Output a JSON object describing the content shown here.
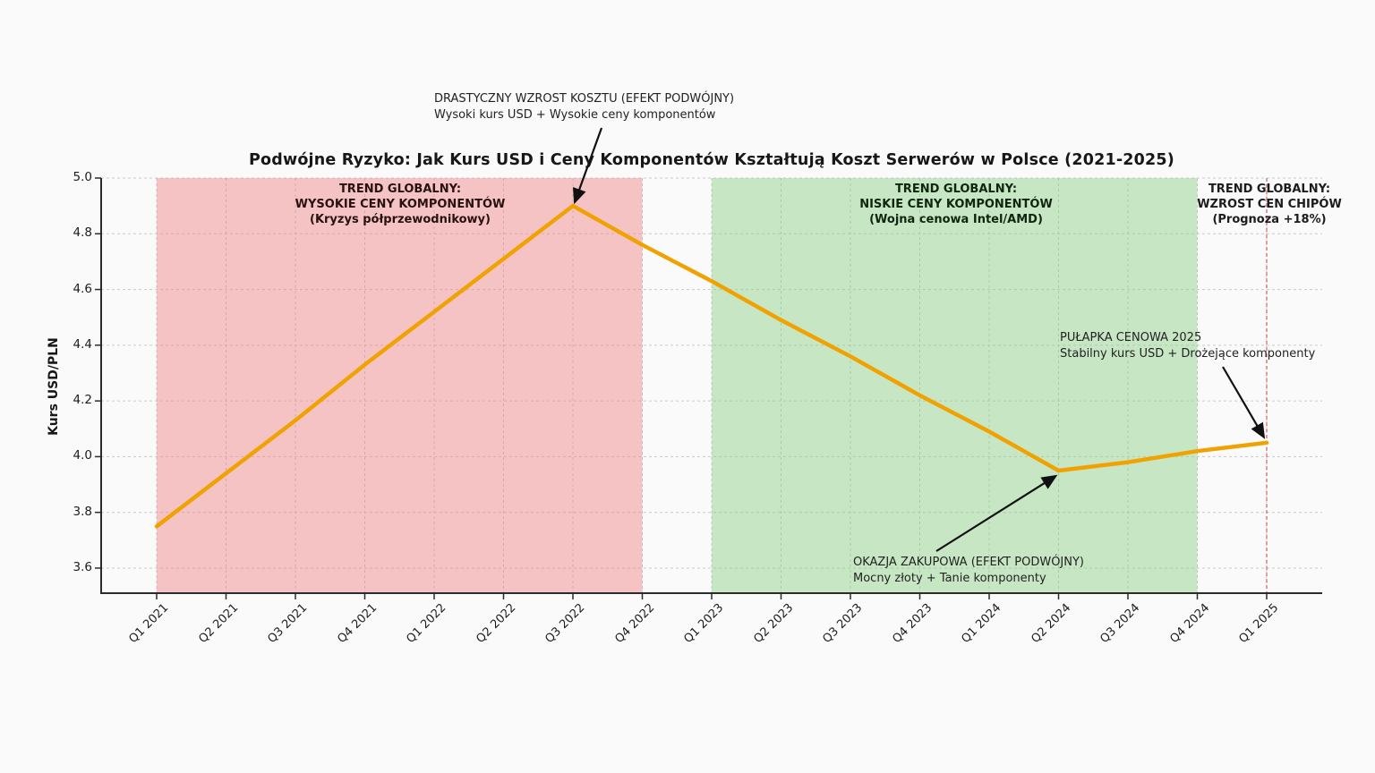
{
  "chart_data": {
    "type": "line",
    "title": "Podwójne Ryzyko: Jak Kurs USD i Ceny Komponentów Kształtują Koszt Serwerów w Polsce (2021-2025)",
    "xlabel": "",
    "ylabel": "Kurs USD/PLN",
    "x_labels": [
      "Q1 2021",
      "Q2 2021",
      "Q3 2021",
      "Q4 2021",
      "Q1 2022",
      "Q2 2022",
      "Q3 2022",
      "Q4 2022",
      "Q1 2023",
      "Q2 2023",
      "Q3 2023",
      "Q4 2023",
      "Q1 2024",
      "Q2 2024",
      "Q3 2024",
      "Q4 2024",
      "Q1 2025"
    ],
    "series": [
      {
        "name": "Kurs USD/PLN",
        "color": "#f0a202",
        "values": [
          3.75,
          3.94,
          4.13,
          4.33,
          4.52,
          4.71,
          4.9,
          4.76,
          4.63,
          4.49,
          4.36,
          4.22,
          4.09,
          3.95,
          3.98,
          4.02,
          4.05
        ]
      }
    ],
    "key_points": [
      {
        "x": "Q1 2021",
        "value": 3.75
      },
      {
        "x": "Q3 2022",
        "value": 4.9,
        "note": "peak"
      },
      {
        "x": "Q2 2024",
        "value": 3.95,
        "note": "trough"
      },
      {
        "x": "Q1 2025",
        "value": 4.05,
        "note": "end"
      }
    ],
    "yticks": [
      3.6,
      3.8,
      4.0,
      4.2,
      4.4,
      4.6,
      4.8,
      5.0
    ],
    "ylim": [
      3.51,
      5.0
    ],
    "grid": "dashed-both-axes",
    "legend": "none",
    "regions": [
      {
        "from": "Q1 2021",
        "to": "Q4 2022",
        "fill": "rgba(240,128,128,0.45)"
      },
      {
        "from": "Q1 2023",
        "to": "Q4 2024",
        "fill": "rgba(136,209,128,0.45)"
      }
    ],
    "vline": {
      "x": "Q1 2025",
      "color": "rgba(200,70,80,0.65)",
      "style": "dashed"
    }
  },
  "region_labels": {
    "red": {
      "line1": "TREND GLOBALNY:",
      "line2": "WYSOKIE CENY KOMPONENTÓW",
      "line3": "(Kryzys półprzewodnikowy)"
    },
    "green": {
      "line1": "TREND GLOBALNY:",
      "line2": "NISKIE CENY KOMPONENTÓW",
      "line3": "(Wojna cenowa Intel/AMD)"
    },
    "right": {
      "line1": "TREND GLOBALNY:",
      "line2": "WZROST CEN CHIPÓW",
      "line3": "(Prognoza +18%)"
    }
  },
  "annotations": {
    "peak": {
      "line1": "DRASTYCZNY WZROST KOSZTU (EFEKT PODWÓJNY)",
      "line2": "Wysoki kurs USD + Wysokie ceny komponentów"
    },
    "trap": {
      "line1": "PUŁAPKA CENOWA 2025",
      "line2": "Stabilny kurs USD + Drożejące komponenty"
    },
    "buy": {
      "line1": "OKAZJA ZAKUPOWA (EFEKT PODWÓJNY)",
      "line2": "Mocny złoty + Tanie komponenty"
    }
  },
  "colors": {
    "line": "#f0a202",
    "grid": "#c9c9c9",
    "spine": "#2b2b2b",
    "arrow": "#111111",
    "band_red": "rgba(240,128,128,0.45)",
    "band_green": "rgba(136,209,128,0.45)",
    "vline_red": "rgba(200,70,80,0.65)"
  }
}
